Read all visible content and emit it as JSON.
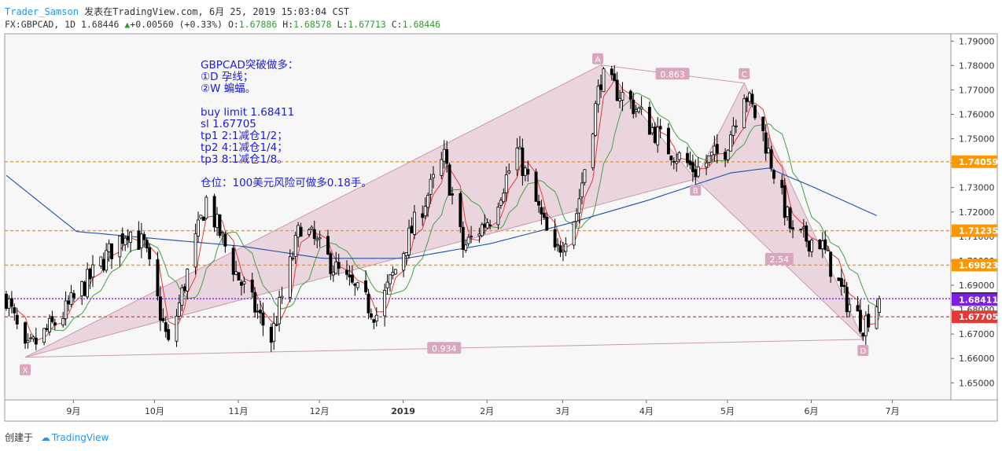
{
  "header": {
    "author": "Trader_Samson",
    "published": "发表在TradingView.com, 6月 25, 2019 15:03:04 CST",
    "symbol": "FX:GBPCAD, 1D",
    "last": "1.68446",
    "change": "+0.00560 (+0.33%)",
    "open_label": "O:",
    "open": "1.67886",
    "high_label": "H:",
    "high": "1.68578",
    "low_label": "L:",
    "low": "1.67713",
    "close_label": "C:",
    "close": "1.68446"
  },
  "footer": {
    "created_by": "创建于",
    "brand": "TradingView"
  },
  "note": {
    "lines": [
      "GBPCAD突破做多：",
      "①D 孕线；",
      "②W 蝙蝠。",
      "",
      "buy limit 1.68411",
      "sl 1.67705",
      "tp1 2:1减仓1/2；",
      "tp2 4:1减仓1/4；",
      "tp3 8:1减仓1/8。",
      "",
      "仓位：100美元风险可做多0.18手。"
    ]
  },
  "chart_data": {
    "type": "candlestick",
    "colors": {
      "up": "#ffffff",
      "down": "#000000",
      "sma_fast": "#e53935",
      "sma_mid": "#43a047",
      "sma_slow": "#1e4fa8",
      "pattern_fill": "#e6c9d6",
      "pattern_line": "#c99aae",
      "orange_line": "#ff9800",
      "purple_line": "#7b1fe0",
      "red_line": "#e53935"
    },
    "y_range": [
      1.643,
      1.793
    ],
    "y_ticks": [
      "1.79000",
      "1.78000",
      "1.77000",
      "1.76000",
      "1.75000",
      "1.74000",
      "1.73000",
      "1.72000",
      "1.71000",
      "1.70000",
      "1.69000",
      "1.68000",
      "1.67000",
      "1.66000",
      "1.65000"
    ],
    "x_ticks": [
      "9月",
      "10月",
      "11月",
      "12月",
      "2019",
      "2月",
      "3月",
      "4月",
      "5月",
      "6月",
      "7月"
    ],
    "x_tick_bold": [
      "2019"
    ],
    "pattern_points": [
      {
        "label": "X",
        "date": "2018-08-13",
        "price": 1.6605
      },
      {
        "label": "A",
        "date": "2019-03-14",
        "price": 1.7802
      },
      {
        "label": "B",
        "date": "2019-04-18",
        "price": 1.7335
      },
      {
        "label": "C",
        "date": "2019-05-06",
        "price": 1.7728
      },
      {
        "label": "D",
        "date": "2019-06-19",
        "price": 1.6678
      }
    ],
    "ratios": [
      {
        "label": "0.863",
        "between": [
          "A",
          "C"
        ]
      },
      {
        "label": "2.54",
        "between": [
          "B",
          "D"
        ]
      },
      {
        "label": "0.934",
        "between": [
          "X",
          "D"
        ]
      }
    ],
    "price_lines": [
      {
        "value": 1.74059,
        "label": "1.74059",
        "color": "#ff9800",
        "style": "dashed"
      },
      {
        "value": 1.71235,
        "label": "1.71235",
        "color": "#ff9800",
        "style": "dashed"
      },
      {
        "value": 1.69823,
        "label": "1.69823",
        "color": "#ff9800",
        "style": "dashed"
      },
      {
        "value": 1.68446,
        "label": "1.68446",
        "color": "#000000",
        "style": "dotted-purple"
      },
      {
        "value": 1.68411,
        "label": "1.68411",
        "color": "#7b1fe0",
        "style": "solid"
      },
      {
        "value": 1.67705,
        "label": "1.67705",
        "color": "#e53935",
        "style": "dashed"
      }
    ],
    "close_anchors": [
      [
        "2018-08-06",
        1.6855
      ],
      [
        "2018-08-13",
        1.662
      ],
      [
        "2018-08-27",
        1.678
      ],
      [
        "2018-09-10",
        1.699
      ],
      [
        "2018-09-20",
        1.713
      ],
      [
        "2018-09-26",
        1.706
      ],
      [
        "2018-10-05",
        1.665
      ],
      [
        "2018-10-19",
        1.725
      ],
      [
        "2018-10-30",
        1.695
      ],
      [
        "2018-11-12",
        1.668
      ],
      [
        "2018-11-23",
        1.715
      ],
      [
        "2018-12-07",
        1.695
      ],
      [
        "2018-12-21",
        1.678
      ],
      [
        "2019-01-04",
        1.715
      ],
      [
        "2019-01-15",
        1.742
      ],
      [
        "2019-01-22",
        1.705
      ],
      [
        "2019-02-01",
        1.718
      ],
      [
        "2019-02-11",
        1.745
      ],
      [
        "2019-02-25",
        1.702
      ],
      [
        "2019-03-05",
        1.72
      ],
      [
        "2019-03-14",
        1.775
      ],
      [
        "2019-03-25",
        1.765
      ],
      [
        "2019-04-08",
        1.746
      ],
      [
        "2019-04-18",
        1.737
      ],
      [
        "2019-04-29",
        1.746
      ],
      [
        "2019-05-06",
        1.77
      ],
      [
        "2019-05-13",
        1.752
      ],
      [
        "2019-05-24",
        1.71
      ],
      [
        "2019-06-03",
        1.708
      ],
      [
        "2019-06-12",
        1.685
      ],
      [
        "2019-06-19",
        1.674
      ],
      [
        "2019-06-25",
        1.68446
      ]
    ],
    "sma_slow_anchors": [
      [
        "2018-08-06",
        1.735
      ],
      [
        "2018-09-01",
        1.712
      ],
      [
        "2018-10-01",
        1.709
      ],
      [
        "2018-11-01",
        1.706
      ],
      [
        "2018-12-01",
        1.701
      ],
      [
        "2019-01-01",
        1.701
      ],
      [
        "2019-02-01",
        1.707
      ],
      [
        "2019-03-01",
        1.715
      ],
      [
        "2019-04-01",
        1.725
      ],
      [
        "2019-05-01",
        1.736
      ],
      [
        "2019-05-15",
        1.738
      ],
      [
        "2019-06-01",
        1.73
      ],
      [
        "2019-06-25",
        1.718
      ]
    ]
  }
}
